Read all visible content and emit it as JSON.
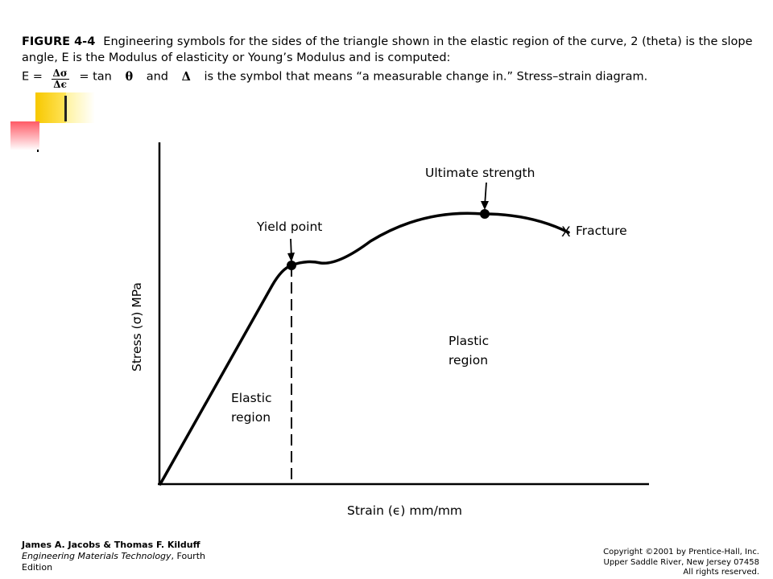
{
  "caption": {
    "figure_label": "FIGURE 4-4",
    "text": "Engineering symbols for the sides of the triangle shown in the elastic region of the curve, 2 (theta) is the slope angle, E is the Modulus of elasticity or Young’s Modulus and is computed:",
    "eq_start": "E =",
    "frac_num": "Δσ",
    "frac_den": "Δϵ",
    "eq_mid": "= tan",
    "theta": "θ",
    "and_word": "and",
    "delta": "Δ",
    "eq_end": "is the symbol that means “a measurable change in.” Stress–strain diagram."
  },
  "diagram": {
    "ylabel": "Stress (σ) MPa",
    "xlabel": "Strain (ϵ) mm/mm",
    "yield_label": "Yield point",
    "ultimate_label": "Ultimate strength",
    "fracture_label": "Fracture",
    "fracture_mark": "X",
    "elastic_label": [
      "Elastic",
      "region"
    ],
    "plastic_label": [
      "Plastic",
      "region"
    ]
  },
  "footer": {
    "authors": "James A. Jacobs & Thomas F. Kilduff",
    "book": "Engineering Materials Technology",
    "edition": ", Fourth Edition",
    "copyright": [
      "Copyright ©2001 by Prentice-Hall, Inc.",
      "Upper Saddle River, New Jersey 07458",
      "All rights reserved."
    ]
  }
}
